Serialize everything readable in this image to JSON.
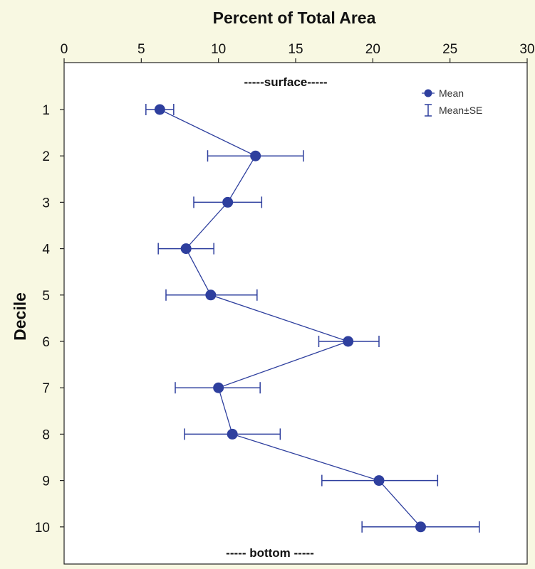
{
  "colors": {
    "background": "#f8f8e2",
    "plot_area": "#ffffff",
    "series": "#2e3f9e",
    "text": "#111111"
  },
  "chart_data": {
    "type": "line",
    "orientation": "horizontal-values",
    "title": "Percent of Total Area",
    "xlabel": "Percent of Total Area",
    "ylabel": "Decile",
    "xlim": [
      0,
      30
    ],
    "x_ticks": [
      "0",
      "5",
      "10",
      "15",
      "20",
      "25",
      "30"
    ],
    "x_axis_position": "top",
    "categories": [
      "1",
      "2",
      "3",
      "4",
      "5",
      "6",
      "7",
      "8",
      "9",
      "10"
    ],
    "series": [
      {
        "name": "Mean",
        "values": [
          6.2,
          12.4,
          10.6,
          7.9,
          9.5,
          18.4,
          10.0,
          10.9,
          20.4,
          23.1
        ],
        "se_low": [
          5.3,
          9.3,
          8.4,
          6.1,
          6.6,
          16.5,
          7.2,
          7.8,
          16.7,
          19.3
        ],
        "se_high": [
          7.1,
          15.5,
          12.8,
          9.7,
          12.5,
          20.4,
          12.7,
          14.0,
          24.2,
          26.9
        ]
      }
    ],
    "legend": {
      "position": "top-right",
      "mean_label": "Mean",
      "se_label": "Mean±SE"
    },
    "annotations": {
      "top": "-----surface-----",
      "bottom": "----- bottom -----"
    },
    "grid": false
  }
}
